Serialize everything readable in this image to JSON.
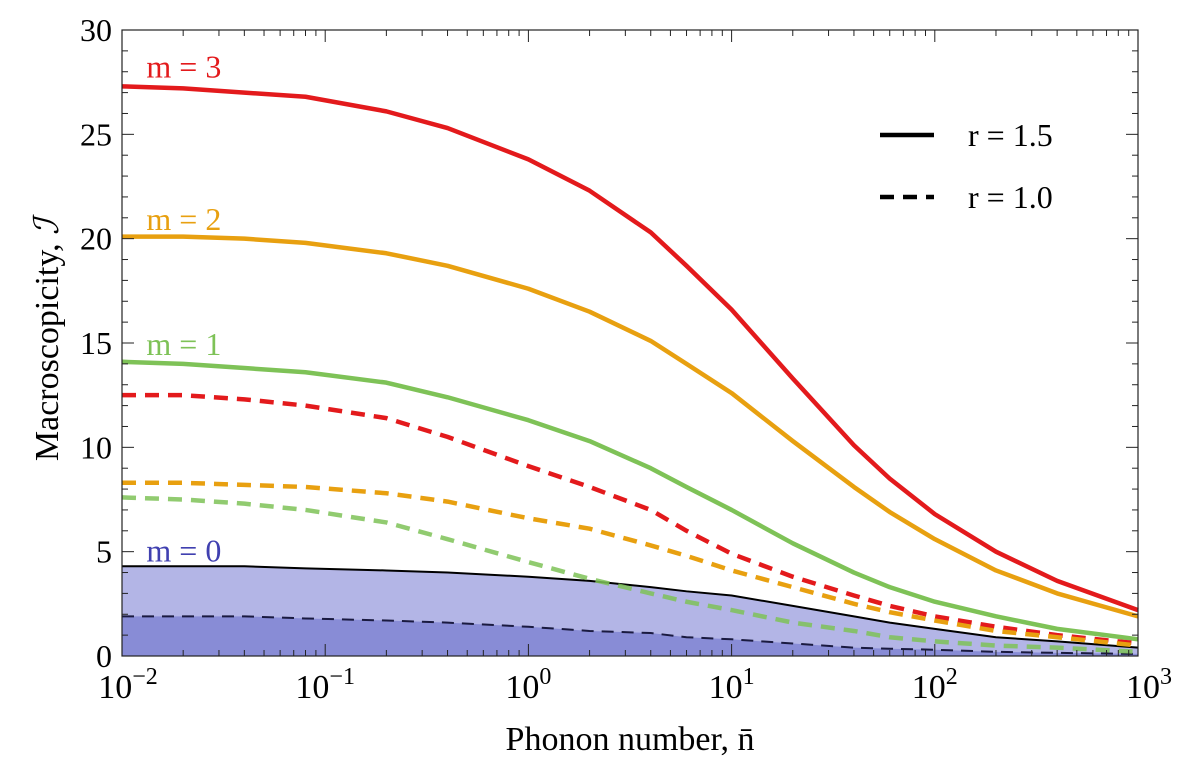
{
  "chart_data": {
    "type": "line",
    "title": "",
    "xlabel": "Phonon number, n̄",
    "ylabel": "Macroscopicity, ",
    "ylabel_symbol": "ℐ",
    "xscale": "log",
    "xlim": [
      0.01,
      1000
    ],
    "ylim": [
      0,
      30
    ],
    "grid": false,
    "x": [
      0.01,
      0.02,
      0.04,
      0.08,
      0.2,
      0.4,
      1,
      2,
      4,
      6,
      10,
      20,
      40,
      60,
      100,
      200,
      400,
      1000
    ],
    "xticks": [
      {
        "value": 0.01,
        "base": "10",
        "exp": "−2"
      },
      {
        "value": 0.1,
        "base": "10",
        "exp": "−1"
      },
      {
        "value": 1,
        "base": "10",
        "exp": "0"
      },
      {
        "value": 10,
        "base": "10",
        "exp": "1"
      },
      {
        "value": 100,
        "base": "10",
        "exp": "2"
      },
      {
        "value": 1000,
        "base": "10",
        "exp": "3"
      }
    ],
    "yticks": [
      "0",
      "5",
      "10",
      "15",
      "20",
      "25",
      "30"
    ],
    "series": [
      {
        "name": "m = 3, r = 1.5",
        "color": "#e31a1c",
        "dash": "solid",
        "values": [
          27.3,
          27.2,
          27.0,
          26.8,
          26.1,
          25.3,
          23.8,
          22.3,
          20.3,
          18.7,
          16.6,
          13.3,
          10.1,
          8.5,
          6.8,
          5.0,
          3.6,
          2.2
        ]
      },
      {
        "name": "m = 2, r = 1.5",
        "color": "#e8a010",
        "dash": "solid",
        "values": [
          20.1,
          20.1,
          20.0,
          19.8,
          19.3,
          18.7,
          17.6,
          16.5,
          15.1,
          14.0,
          12.6,
          10.3,
          8.1,
          6.9,
          5.6,
          4.1,
          3.0,
          1.9
        ]
      },
      {
        "name": "m = 1, r = 1.5",
        "color": "#7ec257",
        "dash": "solid",
        "values": [
          14.1,
          14.0,
          13.8,
          13.6,
          13.1,
          12.4,
          11.3,
          10.3,
          9.0,
          8.1,
          7.0,
          5.4,
          4.0,
          3.3,
          2.6,
          1.9,
          1.3,
          0.8
        ]
      },
      {
        "name": "m = 3, r = 1.0",
        "color": "#e31a1c",
        "dash": "dashed",
        "values": [
          12.5,
          12.5,
          12.3,
          12.0,
          11.4,
          10.5,
          9.1,
          8.1,
          7.0,
          6.0,
          4.9,
          3.8,
          2.9,
          2.4,
          1.9,
          1.4,
          1.0,
          0.6
        ]
      },
      {
        "name": "m = 2, r = 1.0",
        "color": "#e8a010",
        "dash": "dashed",
        "values": [
          8.3,
          8.3,
          8.2,
          8.1,
          7.8,
          7.4,
          6.6,
          6.1,
          5.3,
          4.8,
          4.1,
          3.3,
          2.5,
          2.1,
          1.7,
          1.2,
          0.9,
          0.5
        ]
      },
      {
        "name": "m = 1, r = 1.0",
        "color": "#7ec257",
        "dash": "dashed",
        "values": [
          7.6,
          7.5,
          7.3,
          7.0,
          6.4,
          5.6,
          4.5,
          3.7,
          3.0,
          2.6,
          2.2,
          1.6,
          1.2,
          0.9,
          0.7,
          0.5,
          0.4,
          0.2
        ]
      },
      {
        "name": "m = 0, r = 1.5",
        "color": "#000000",
        "dash": "solid",
        "fill": "#b3b5e6",
        "values": [
          4.3,
          4.3,
          4.3,
          4.2,
          4.1,
          4.0,
          3.8,
          3.6,
          3.3,
          3.1,
          2.9,
          2.4,
          1.9,
          1.6,
          1.3,
          0.9,
          0.7,
          0.4
        ]
      },
      {
        "name": "m = 0, r = 1.0",
        "color": "#1a1a40",
        "dash": "dashed",
        "fill": "#888cd6",
        "values": [
          1.9,
          1.9,
          1.9,
          1.8,
          1.7,
          1.6,
          1.4,
          1.2,
          1.1,
          0.9,
          0.8,
          0.6,
          0.4,
          0.35,
          0.3,
          0.2,
          0.15,
          0.1
        ]
      }
    ],
    "annotations": [
      {
        "text": "m = 3",
        "color": "#e31a1c",
        "x": 0.011,
        "y": 28.3
      },
      {
        "text": "m = 2",
        "color": "#e8a010",
        "x": 0.011,
        "y": 21.0
      },
      {
        "text": "m = 1",
        "color": "#7ec257",
        "x": 0.011,
        "y": 15.0
      },
      {
        "text": "m = 0",
        "color": "#4040b0",
        "x": 0.011,
        "y": 5.1
      }
    ],
    "legend": {
      "placement": "top-right",
      "entries": [
        {
          "label": "r = 1.5",
          "dash": "solid"
        },
        {
          "label": "r = 1.0",
          "dash": "dashed"
        }
      ]
    }
  }
}
